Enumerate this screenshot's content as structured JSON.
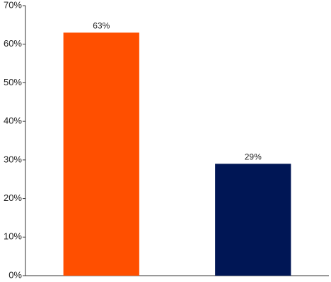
{
  "chart_data": {
    "type": "bar",
    "categories": [
      null,
      null
    ],
    "values": [
      63,
      29
    ],
    "value_labels": [
      "63%",
      "29%"
    ],
    "colors": [
      "#ff4f00",
      "#001655"
    ],
    "ylim": [
      0,
      70
    ],
    "yticks": [
      {
        "value": 0,
        "label": "0%"
      },
      {
        "value": 10,
        "label": "10%"
      },
      {
        "value": 20,
        "label": "20%"
      },
      {
        "value": 30,
        "label": "30%"
      },
      {
        "value": 40,
        "label": "40%"
      },
      {
        "value": 50,
        "label": "50%"
      },
      {
        "value": 60,
        "label": "60%"
      },
      {
        "value": 70,
        "label": "70%"
      }
    ],
    "grid": false
  }
}
